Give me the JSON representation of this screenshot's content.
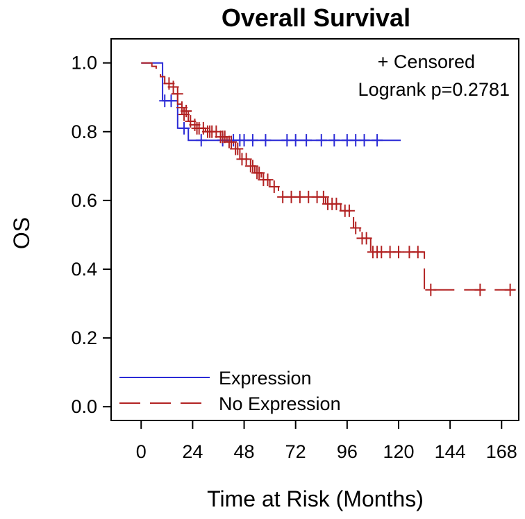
{
  "chart_data": {
    "type": "line",
    "subtype": "kaplan-meier",
    "title": "Overall Survival",
    "xlabel": "Time at Risk (Months)",
    "ylabel": "OS",
    "xlim": [
      -14,
      176
    ],
    "ylim": [
      -0.04,
      1.07
    ],
    "xticks": [
      0,
      24,
      48,
      72,
      96,
      120,
      144,
      168
    ],
    "yticks": [
      0.0,
      0.2,
      0.4,
      0.6,
      0.8,
      1.0
    ],
    "ytick_labels": [
      "0.0",
      "0.2",
      "0.4",
      "0.6",
      "0.8",
      "1.0"
    ],
    "annotations": {
      "censored": "+ Censored",
      "logrank": "Logrank p=0.2781"
    },
    "legend_position": "bottom-left",
    "series": [
      {
        "name": "Expression",
        "color": "#2b2bd6",
        "dash": "solid",
        "steps": [
          [
            0,
            1.0
          ],
          [
            10,
            1.0
          ],
          [
            10,
            0.89
          ],
          [
            17,
            0.89
          ],
          [
            17,
            0.81
          ],
          [
            22,
            0.81
          ],
          [
            22,
            0.775
          ],
          [
            121,
            0.775
          ]
        ],
        "censored": [
          [
            11,
            0.89
          ],
          [
            14,
            0.89
          ],
          [
            20,
            0.81
          ],
          [
            28,
            0.775
          ],
          [
            38,
            0.775
          ],
          [
            43,
            0.775
          ],
          [
            46,
            0.775
          ],
          [
            48,
            0.775
          ],
          [
            52,
            0.775
          ],
          [
            58,
            0.775
          ],
          [
            68,
            0.775
          ],
          [
            72,
            0.775
          ],
          [
            77,
            0.775
          ],
          [
            84,
            0.775
          ],
          [
            90,
            0.775
          ],
          [
            96,
            0.775
          ],
          [
            100,
            0.775
          ],
          [
            104,
            0.775
          ],
          [
            110,
            0.775
          ]
        ]
      },
      {
        "name": "No Expression",
        "color": "#b22222",
        "dash": "dashed",
        "steps": [
          [
            0,
            1.0
          ],
          [
            5,
            1.0
          ],
          [
            5,
            0.99
          ],
          [
            7,
            0.99
          ],
          [
            7,
            0.975
          ],
          [
            9,
            0.975
          ],
          [
            9,
            0.96
          ],
          [
            11,
            0.96
          ],
          [
            11,
            0.94
          ],
          [
            14,
            0.94
          ],
          [
            14,
            0.91
          ],
          [
            17,
            0.91
          ],
          [
            17,
            0.88
          ],
          [
            19,
            0.88
          ],
          [
            19,
            0.86
          ],
          [
            22,
            0.86
          ],
          [
            22,
            0.83
          ],
          [
            25,
            0.83
          ],
          [
            25,
            0.81
          ],
          [
            30,
            0.81
          ],
          [
            30,
            0.8
          ],
          [
            36,
            0.8
          ],
          [
            36,
            0.785
          ],
          [
            40,
            0.785
          ],
          [
            40,
            0.77
          ],
          [
            43,
            0.77
          ],
          [
            43,
            0.75
          ],
          [
            46,
            0.75
          ],
          [
            46,
            0.72
          ],
          [
            50,
            0.72
          ],
          [
            50,
            0.7
          ],
          [
            53,
            0.7
          ],
          [
            53,
            0.68
          ],
          [
            56,
            0.68
          ],
          [
            56,
            0.66
          ],
          [
            60,
            0.66
          ],
          [
            60,
            0.64
          ],
          [
            64,
            0.64
          ],
          [
            64,
            0.61
          ],
          [
            86,
            0.61
          ],
          [
            86,
            0.59
          ],
          [
            93,
            0.59
          ],
          [
            93,
            0.57
          ],
          [
            99,
            0.57
          ],
          [
            99,
            0.52
          ],
          [
            102,
            0.52
          ],
          [
            102,
            0.49
          ],
          [
            107,
            0.49
          ],
          [
            107,
            0.45
          ],
          [
            132,
            0.45
          ],
          [
            132,
            0.34
          ],
          [
            176,
            0.34
          ]
        ],
        "censored": [
          [
            13,
            0.94
          ],
          [
            15,
            0.93
          ],
          [
            17,
            0.91
          ],
          [
            19,
            0.87
          ],
          [
            20,
            0.85
          ],
          [
            21,
            0.86
          ],
          [
            23,
            0.83
          ],
          [
            25,
            0.82
          ],
          [
            26,
            0.81
          ],
          [
            27,
            0.81
          ],
          [
            29,
            0.81
          ],
          [
            31,
            0.8
          ],
          [
            32,
            0.8
          ],
          [
            33,
            0.8
          ],
          [
            35,
            0.8
          ],
          [
            37,
            0.785
          ],
          [
            38,
            0.785
          ],
          [
            39,
            0.785
          ],
          [
            41,
            0.77
          ],
          [
            42,
            0.77
          ],
          [
            44,
            0.75
          ],
          [
            45,
            0.75
          ],
          [
            47,
            0.72
          ],
          [
            49,
            0.72
          ],
          [
            51,
            0.7
          ],
          [
            52,
            0.7
          ],
          [
            54,
            0.68
          ],
          [
            55,
            0.68
          ],
          [
            57,
            0.66
          ],
          [
            59,
            0.66
          ],
          [
            62,
            0.64
          ],
          [
            66,
            0.61
          ],
          [
            70,
            0.61
          ],
          [
            74,
            0.61
          ],
          [
            78,
            0.61
          ],
          [
            82,
            0.61
          ],
          [
            85,
            0.61
          ],
          [
            87,
            0.59
          ],
          [
            89,
            0.59
          ],
          [
            91,
            0.59
          ],
          [
            95,
            0.57
          ],
          [
            97,
            0.57
          ],
          [
            100,
            0.52
          ],
          [
            103,
            0.49
          ],
          [
            105,
            0.49
          ],
          [
            108,
            0.45
          ],
          [
            110,
            0.45
          ],
          [
            112,
            0.45
          ],
          [
            116,
            0.45
          ],
          [
            120,
            0.45
          ],
          [
            125,
            0.45
          ],
          [
            129,
            0.45
          ],
          [
            135,
            0.34
          ],
          [
            158,
            0.34
          ],
          [
            172,
            0.34
          ]
        ]
      }
    ]
  }
}
